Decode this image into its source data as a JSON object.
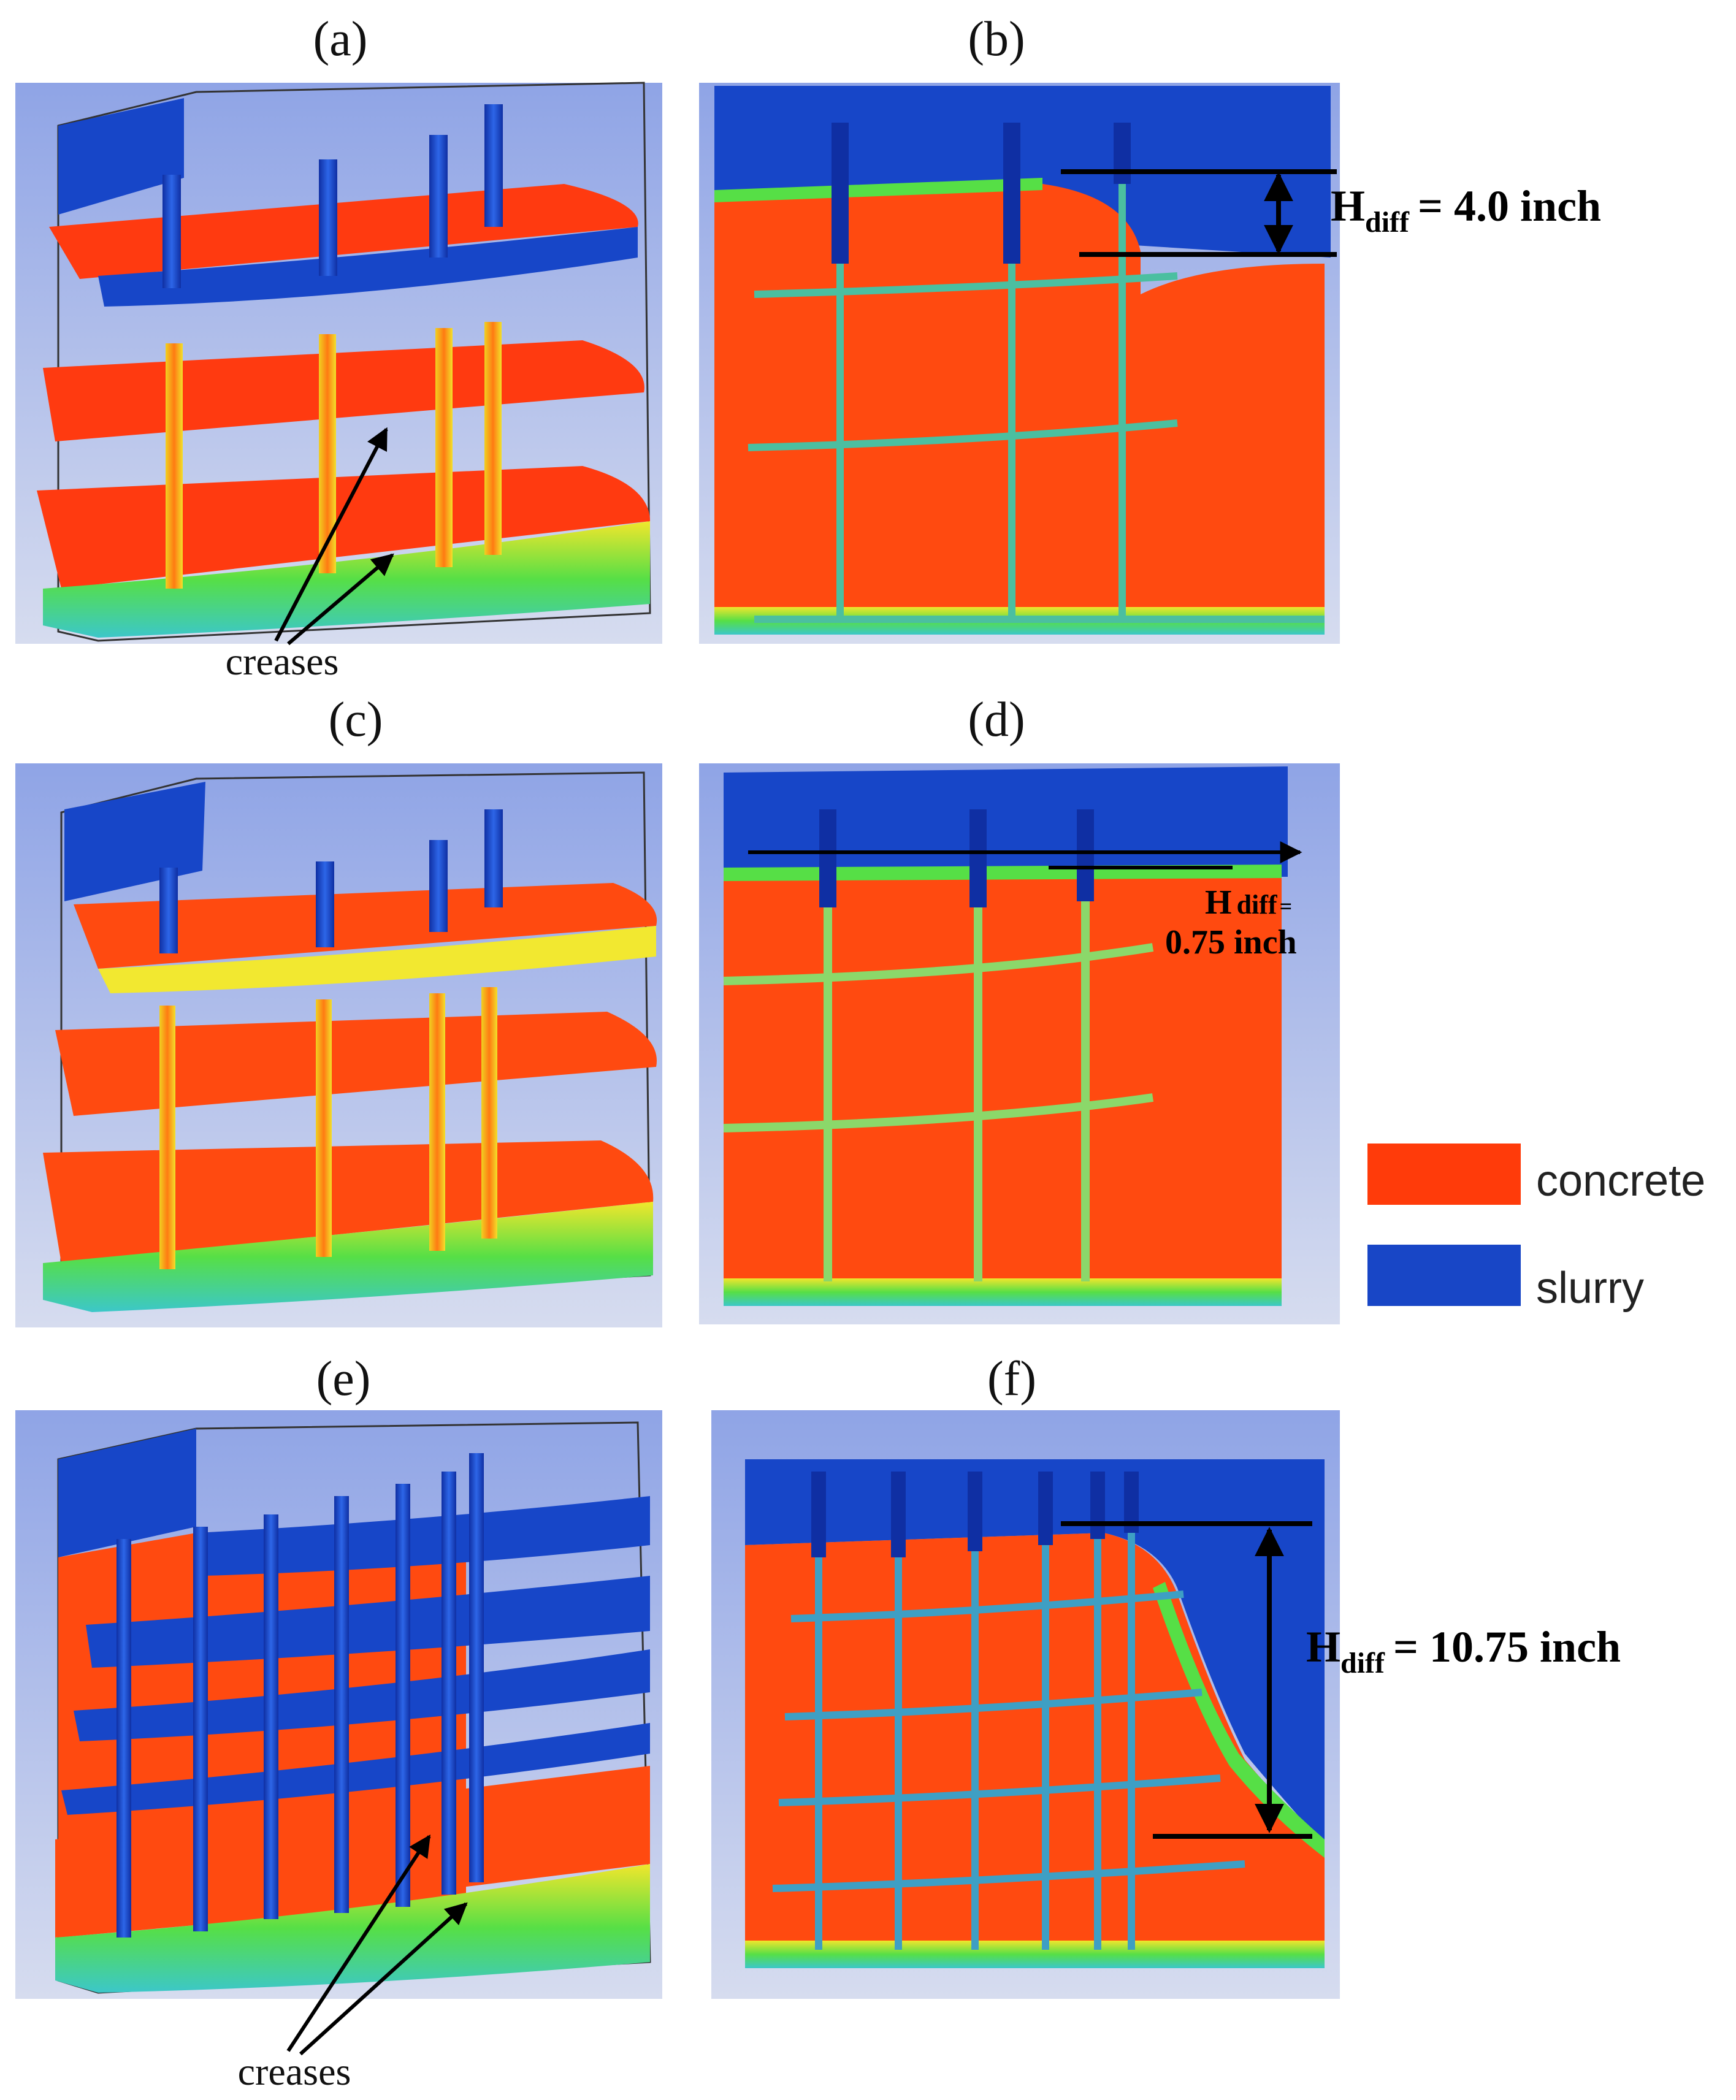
{
  "panels": {
    "a": {
      "label": "(a)",
      "callout": "creases"
    },
    "b": {
      "label": "(b)",
      "h_main": "H",
      "h_sub": "diff",
      "h_value": "= 4.0 inch"
    },
    "c": {
      "label": "(c)"
    },
    "d": {
      "label": "(d)",
      "h_main": "H",
      "h_sub": "diff",
      "h_eq": "=",
      "h_value": "0.75 inch"
    },
    "e": {
      "label": "(e)",
      "callout": "creases"
    },
    "f": {
      "label": "(f)",
      "h_main": "H",
      "h_sub": "diff",
      "h_value": "= 10.75 inch"
    }
  },
  "legend": {
    "items": [
      {
        "label": "concrete",
        "color": "#ff3b0a"
      },
      {
        "label": "slurry",
        "color": "#1846c6"
      }
    ]
  },
  "colors": {
    "concrete": "#ff4a10",
    "slurry": "#1746c8",
    "mixing_green": "#5fe04a",
    "mixing_yellow": "#f2e830",
    "background": "#b9c6ee"
  }
}
